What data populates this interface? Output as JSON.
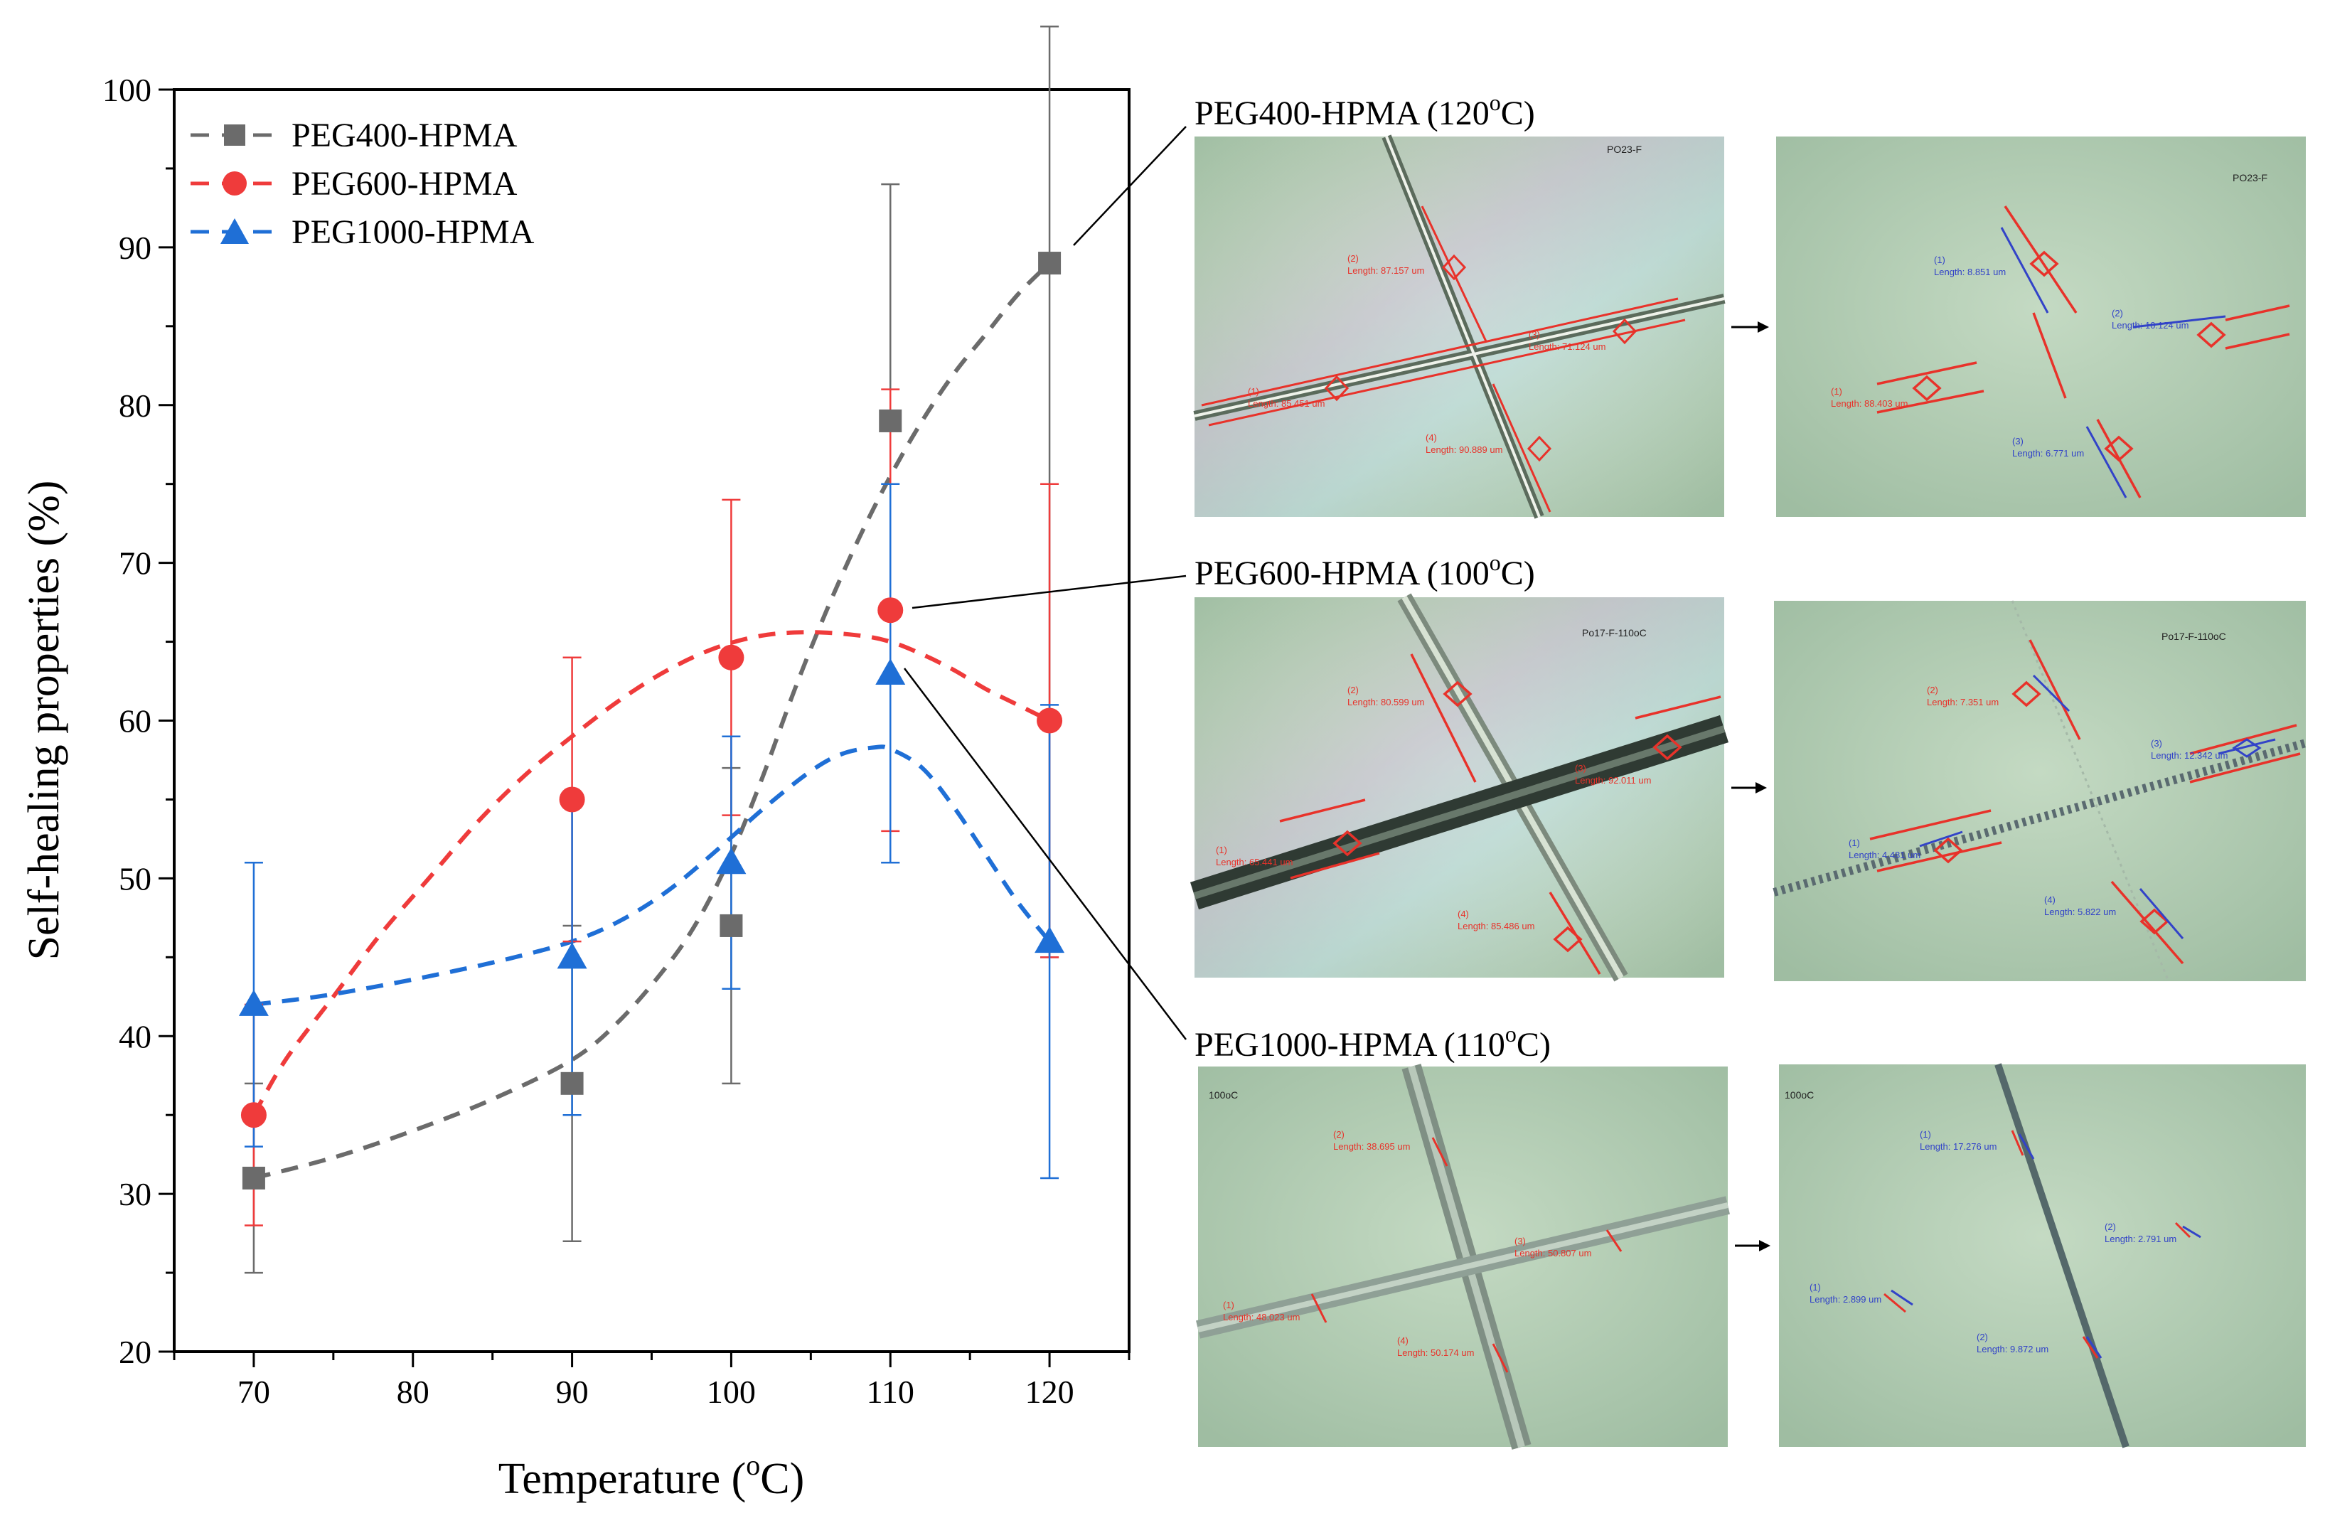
{
  "chart_data": {
    "type": "scatter",
    "xlabel": "Temperature (",
    "xlabel_sup": "o",
    "xlabel_unit": "C)",
    "ylabel": "Self-healing properties (%)",
    "xlim": [
      65,
      125
    ],
    "ylim": [
      20,
      100
    ],
    "x_ticks": [
      70,
      80,
      90,
      100,
      110,
      120
    ],
    "y_ticks": [
      20,
      30,
      40,
      50,
      60,
      70,
      80,
      90,
      100
    ],
    "legend_position": "top-left",
    "series": [
      {
        "name": "PEG400-HPMA",
        "marker": "square",
        "color": "#6b6b6b",
        "x": [
          70,
          90,
          100,
          110,
          120
        ],
        "y": [
          31,
          37,
          47,
          79,
          89
        ],
        "err_low": [
          25,
          27,
          37,
          51,
          45
        ],
        "err_high": [
          37,
          47,
          57,
          94,
          104
        ],
        "fit": [
          [
            70,
            31
          ],
          [
            75,
            32.3
          ],
          [
            80,
            34
          ],
          [
            85,
            36
          ],
          [
            90,
            38.5
          ],
          [
            93,
            41
          ],
          [
            96,
            44.5
          ],
          [
            98,
            47.5
          ],
          [
            100,
            51.5
          ],
          [
            102,
            56.5
          ],
          [
            104,
            62
          ],
          [
            106,
            67
          ],
          [
            108,
            71.5
          ],
          [
            110,
            75.5
          ],
          [
            112,
            79
          ],
          [
            114,
            82
          ],
          [
            116,
            84.5
          ],
          [
            118,
            87
          ],
          [
            120,
            89
          ]
        ]
      },
      {
        "name": "PEG600-HPMA",
        "marker": "circle",
        "color": "#ef3b3b",
        "x": [
          70,
          90,
          100,
          110,
          120
        ],
        "y": [
          35,
          55,
          64,
          67,
          60
        ],
        "err_low": [
          28,
          46,
          54,
          53,
          45
        ],
        "err_high": [
          42,
          64,
          74,
          81,
          75
        ],
        "fit": [
          [
            70,
            35
          ],
          [
            72,
            38.5
          ],
          [
            75,
            42.5
          ],
          [
            78,
            46.5
          ],
          [
            81,
            50
          ],
          [
            84,
            53.5
          ],
          [
            87,
            56.5
          ],
          [
            90,
            59
          ],
          [
            93,
            61.3
          ],
          [
            96,
            63.2
          ],
          [
            99,
            64.6
          ],
          [
            102,
            65.4
          ],
          [
            105,
            65.6
          ],
          [
            108,
            65.4
          ],
          [
            110,
            65
          ],
          [
            112,
            64.2
          ],
          [
            114,
            63.2
          ],
          [
            116,
            62
          ],
          [
            118,
            61
          ],
          [
            120,
            60
          ]
        ]
      },
      {
        "name": "PEG1000-HPMA",
        "marker": "triangle",
        "color": "#1f6fd6",
        "x": [
          70,
          90,
          100,
          110,
          120
        ],
        "y": [
          42,
          45,
          51,
          63,
          46
        ],
        "err_low": [
          33,
          35,
          43,
          51,
          31
        ],
        "err_high": [
          51,
          55,
          59,
          75,
          61
        ],
        "fit": [
          [
            70,
            42
          ],
          [
            74,
            42.5
          ],
          [
            78,
            43.2
          ],
          [
            82,
            44
          ],
          [
            86,
            44.9
          ],
          [
            90,
            46
          ],
          [
            93,
            47.3
          ],
          [
            96,
            49.2
          ],
          [
            99,
            51.7
          ],
          [
            102,
            54.4
          ],
          [
            105,
            56.8
          ],
          [
            107,
            57.9
          ],
          [
            109,
            58.3
          ],
          [
            110,
            58.2
          ],
          [
            112,
            57
          ],
          [
            114,
            54.5
          ],
          [
            116,
            51.5
          ],
          [
            118,
            48.5
          ],
          [
            120,
            46
          ]
        ]
      }
    ]
  },
  "panels": [
    {
      "title": "PEG400-HPMA (120",
      "title_sup": "o",
      "title_unit": "C)",
      "tag": "PO23-F",
      "before_labels": [
        "(2)",
        "Length: 87.157 um",
        "(1)",
        "Length: 85.451 um",
        "(3)",
        "Length: 71.124 um",
        "(4)",
        "Length: 90.889 um"
      ],
      "after_labels": [
        "(1)",
        "Length: 8.851 um",
        "(2)",
        "Length: 10.124 um",
        "(3)",
        "Length: 6.771 um",
        "(1)",
        "Length: 88.403 um"
      ]
    },
    {
      "title": "PEG600-HPMA (100",
      "title_sup": "o",
      "title_unit": "C)",
      "tag": "Po17-F-110oC",
      "before_labels": [
        "(2)",
        "Length: 80.599 um",
        "(1)",
        "Length: 65.441 um",
        "(4)",
        "Length: 85.486 um",
        "(3)",
        "Length: 92.011 um"
      ],
      "after_labels": [
        "(2)",
        "Length: 7.351 um",
        "(1)",
        "Length: 4.481 um",
        "(3)",
        "Length: 12.342 um",
        "(4)",
        "Length: 5.822 um"
      ]
    },
    {
      "title": "PEG1000-HPMA (110",
      "title_sup": "o",
      "title_unit": "C)",
      "tag": "100oC",
      "before_labels": [
        "(2)",
        "Length: 38.695 um",
        "(3)",
        "Length: 50.807 um",
        "(1)",
        "Length: 48.023 um",
        "(4)",
        "Length: 50.174 um"
      ],
      "after_labels": [
        "(1)",
        "Length: 17.276 um",
        "(2)",
        "Length: 2.791 um",
        "(1)",
        "Length: 2.899 um",
        "(2)",
        "Length: 9.872 um"
      ]
    }
  ],
  "colors": {
    "micro_bg": "#b9d2b9",
    "micro_bg_dark": "#a8c4aa",
    "measure_red": "#e8322a",
    "measure_blue": "#3243c8",
    "fiber": "#8a9a8a"
  }
}
